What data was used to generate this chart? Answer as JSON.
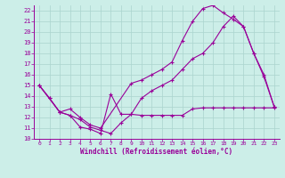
{
  "xlabel": "Windchill (Refroidissement éolien,°C)",
  "background_color": "#cceee8",
  "grid_color": "#aad4ce",
  "line_color": "#990099",
  "xlim": [
    -0.5,
    23.5
  ],
  "ylim": [
    10,
    22.5
  ],
  "xticks": [
    0,
    1,
    2,
    3,
    4,
    5,
    6,
    7,
    8,
    9,
    10,
    11,
    12,
    13,
    14,
    15,
    16,
    17,
    18,
    19,
    20,
    21,
    22,
    23
  ],
  "yticks": [
    10,
    11,
    12,
    13,
    14,
    15,
    16,
    17,
    18,
    19,
    20,
    21,
    22
  ],
  "series1_x": [
    0,
    1,
    2,
    3,
    4,
    5,
    6,
    7,
    8,
    9,
    10,
    11,
    12,
    13,
    14,
    15,
    16,
    17,
    18,
    19,
    20,
    21,
    22,
    23
  ],
  "series1_y": [
    15,
    13.8,
    12.5,
    12.2,
    11.1,
    10.9,
    10.5,
    14.2,
    12.3,
    12.3,
    12.2,
    12.2,
    12.2,
    12.2,
    12.2,
    12.8,
    12.9,
    12.9,
    12.9,
    12.9,
    12.9,
    12.9,
    12.9,
    12.9
  ],
  "series2_x": [
    0,
    1,
    2,
    3,
    4,
    5,
    6,
    9,
    10,
    11,
    12,
    13,
    14,
    15,
    16,
    17,
    18,
    19,
    20,
    21,
    22,
    23
  ],
  "series2_y": [
    15,
    13.8,
    12.5,
    12.8,
    12.0,
    11.3,
    11.0,
    15.2,
    15.5,
    16.0,
    16.5,
    17.2,
    19.2,
    21.0,
    22.2,
    22.5,
    21.8,
    21.2,
    20.5,
    18.0,
    16.0,
    13.0
  ],
  "series3_x": [
    0,
    2,
    3,
    4,
    5,
    6,
    7,
    8,
    9,
    10,
    11,
    12,
    13,
    14,
    15,
    16,
    17,
    18,
    19,
    20,
    21,
    22,
    23
  ],
  "series3_y": [
    15,
    12.5,
    12.2,
    11.8,
    11.1,
    10.8,
    10.5,
    11.5,
    12.3,
    13.8,
    14.5,
    15.0,
    15.5,
    16.5,
    17.5,
    18.0,
    19.0,
    20.5,
    21.5,
    20.5,
    18.0,
    15.8,
    13.0
  ]
}
